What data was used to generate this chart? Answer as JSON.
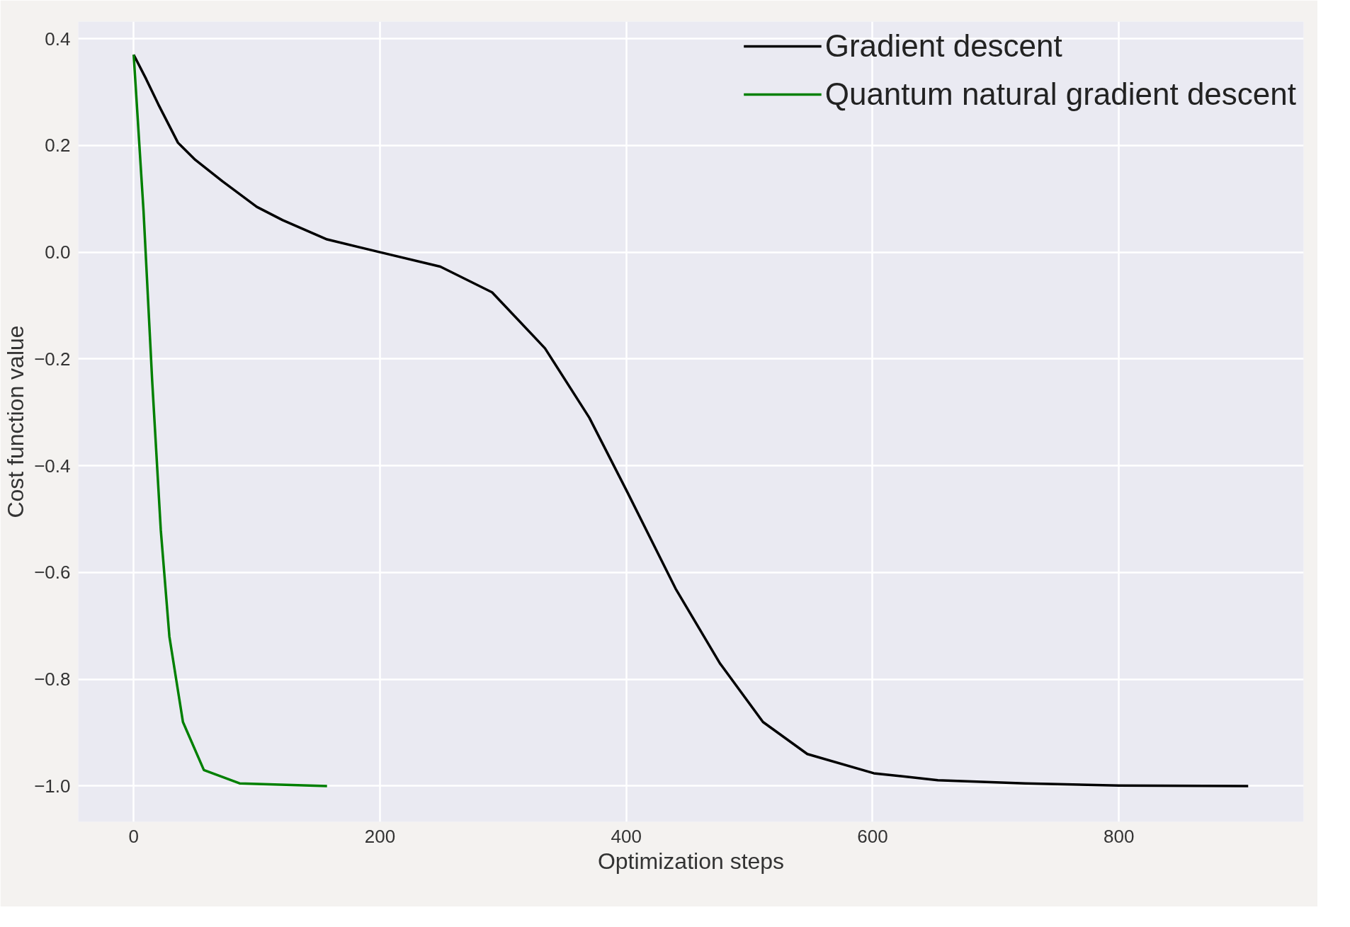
{
  "chart_data": {
    "type": "line",
    "xlabel": "Optimization steps",
    "ylabel": "Cost function value",
    "xlim": [
      -45,
      950
    ],
    "ylim": [
      -1.067,
      0.432
    ],
    "xticks": [
      0,
      200,
      400,
      600,
      800
    ],
    "yticks": [
      {
        "value": 0.4,
        "label": "0.4"
      },
      {
        "value": 0.2,
        "label": "0.2"
      },
      {
        "value": 0,
        "label": "0.0"
      },
      {
        "value": -0.2,
        "label": "−0.2"
      },
      {
        "value": -0.4,
        "label": "−0.4"
      },
      {
        "value": -0.6,
        "label": "−0.6"
      },
      {
        "value": -0.8,
        "label": "−0.8"
      },
      {
        "value": -1,
        "label": "−1.0"
      }
    ],
    "grid": true,
    "legend": "top right",
    "marker": "none",
    "line_style": "solid",
    "series": [
      {
        "name": "Gradient descent",
        "color": "#000000",
        "x": [
          0,
          10,
          20,
          36,
          50,
          72,
          100,
          121,
          157,
          200,
          249,
          291,
          334,
          370,
          401,
          440,
          476,
          511,
          547,
          601,
          653,
          724,
          800,
          905
        ],
        "values": [
          0.37,
          0.325,
          0.277,
          0.205,
          0.173,
          0.133,
          0.085,
          0.06,
          0.024,
          0,
          -0.027,
          -0.075,
          -0.18,
          -0.31,
          -0.45,
          -0.63,
          -0.77,
          -0.88,
          -0.94,
          -0.976,
          -0.989,
          -0.995,
          -0.999,
          -1.0
        ]
      },
      {
        "name": "Quantum natural gradient descent",
        "color": "#008000",
        "x": [
          0,
          8,
          15,
          22,
          29,
          40,
          57,
          86,
          157
        ],
        "values": [
          0.37,
          0.077,
          -0.24,
          -0.52,
          -0.72,
          -0.88,
          -0.97,
          -0.995,
          -1.0
        ]
      }
    ]
  }
}
